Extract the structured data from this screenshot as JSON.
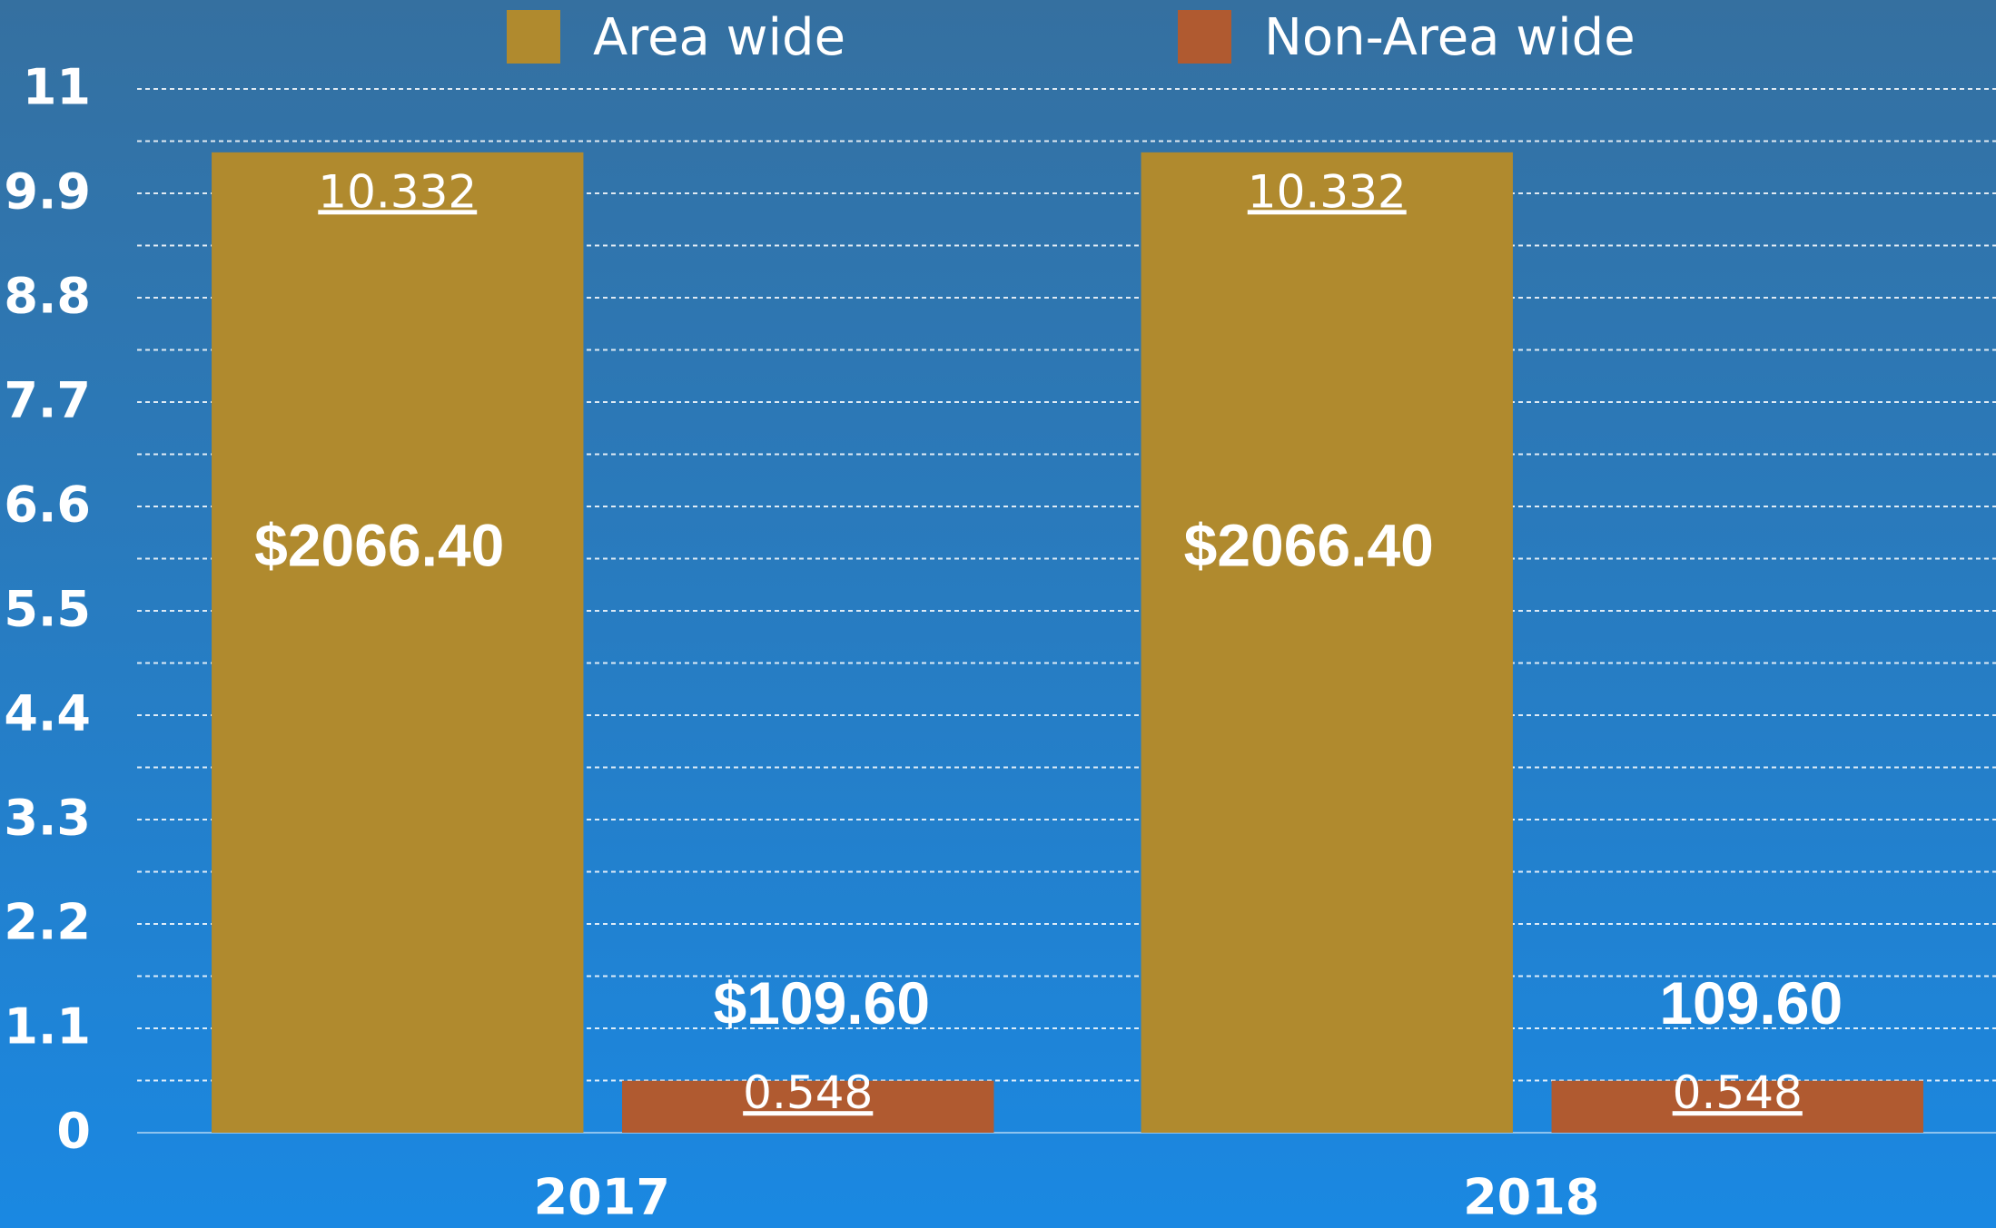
{
  "chart_data": {
    "type": "bar",
    "categories": [
      "2017",
      "2018"
    ],
    "series": [
      {
        "name": "Area wide",
        "color": "#b08a2e",
        "values": [
          10.332,
          10.332
        ],
        "annotations": [
          "$2066.40",
          "$2066.40"
        ]
      },
      {
        "name": "Non-Area wide",
        "color": "#b05a30",
        "values": [
          0.548,
          0.548
        ],
        "annotations": [
          "$109.60",
          "109.60"
        ]
      }
    ],
    "ylim": [
      0,
      11
    ],
    "yticks": [
      0,
      1.1,
      2.2,
      3.3,
      4.4,
      5.5,
      6.6,
      7.7,
      8.8,
      9.9,
      11
    ],
    "minor_yticks": [
      0.55,
      1.65,
      2.75,
      3.85,
      4.95,
      6.05,
      7.15,
      8.25,
      9.35,
      10.45
    ],
    "grid": true,
    "legend": "top"
  }
}
